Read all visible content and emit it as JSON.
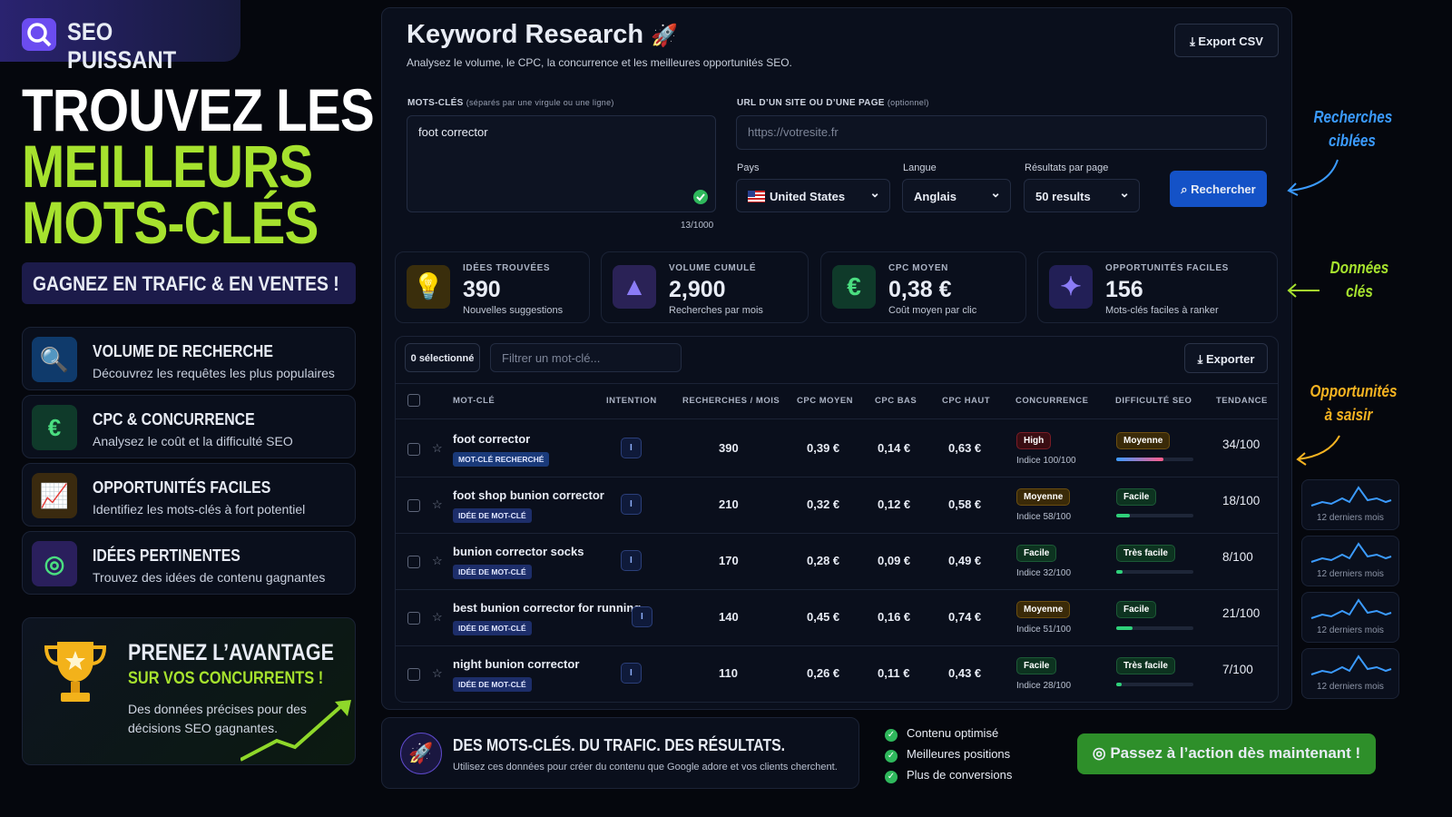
{
  "brand": "SEO PUISSANT",
  "hero": {
    "lines": [
      "TROUVEZ LES",
      "MEILLEURS",
      "MOTS-CLÉS"
    ],
    "badge": "GAGNEZ EN TRAFIC & EN VENTES !"
  },
  "features": [
    {
      "title": "VOLUME DE RECHERCHE",
      "desc": "Découvrez les requêtes les plus populaires"
    },
    {
      "title": "CPC & CONCURRENCE",
      "desc": "Analysez le coût et la difficulté SEO"
    },
    {
      "title": "OPPORTUNITÉS FACILES",
      "desc": "Identifiez les mots-clés à fort potentiel"
    },
    {
      "title": "IDÉES PERTINENTES",
      "desc": "Trouvez des idées de contenu gagnantes"
    }
  ],
  "promo": {
    "title": "PRENEZ L’AVANTAGE",
    "subtitle": "SUR VOS CONCURRENTS !",
    "text": "Des données précises pour des décisions SEO gagnantes."
  },
  "app": {
    "title": "Keyword Research",
    "subtitle": "Analysez le volume, le CPC, la concurrence et les meilleures opportunités SEO.",
    "export": "Export CSV"
  },
  "form": {
    "keywords_label": "MOTS-CLÉS",
    "keywords_hint": "(séparés par une virgule ou une ligne)",
    "keywords_value": "foot corrector",
    "counter": "13/1000",
    "url_label": "URL D’UN SITE OU D’UNE PAGE",
    "url_hint": "(optionnel)",
    "url_placeholder": "https://votresite.fr",
    "country_label": "Pays",
    "country_value": "United States",
    "language_label": "Langue",
    "language_value": "Anglais",
    "results_label": "Résultats par page",
    "results_value": "50 results",
    "search": "Rechercher"
  },
  "stats": [
    {
      "label": "IDÉES TROUVÉES",
      "value": "390",
      "sub": "Nouvelles suggestions"
    },
    {
      "label": "VOLUME CUMULÉ",
      "value": "2,900",
      "sub": "Recherches par mois"
    },
    {
      "label": "CPC MOYEN",
      "value": "0,38 €",
      "sub": "Coût moyen par clic"
    },
    {
      "label": "OPPORTUNITÉS FACILES",
      "value": "156",
      "sub": "Mots-clés faciles à ranker"
    }
  ],
  "toolbar": {
    "selected": "0 sélectionné",
    "filter_placeholder": "Filtrer un mot-clé...",
    "export": "Exporter"
  },
  "table": {
    "columns": [
      "MOT-CLÉ",
      "INTENTION",
      "RECHERCHES / MOIS",
      "CPC MOYEN",
      "CPC BAS",
      "CPC HAUT",
      "CONCURRENCE",
      "DIFFICULTÉ SEO",
      "TENDANCE"
    ],
    "rows": [
      {
        "keyword": "foot corrector",
        "tag": "MOT-CLÉ RECHERCHÉ",
        "intent": "I",
        "volume": "390",
        "cpc": "0,39 €",
        "low": "0,14 €",
        "high": "0,63 €",
        "competition": "High",
        "index": "Indice 100/100",
        "difficulty": "Moyenne",
        "score": "34/100"
      },
      {
        "keyword": "foot shop bunion corrector",
        "tag": "IDÉE DE MOT-CLÉ",
        "intent": "I",
        "volume": "210",
        "cpc": "0,32 €",
        "low": "0,12 €",
        "high": "0,58 €",
        "competition": "Moyenne",
        "index": "Indice 58/100",
        "difficulty": "Facile",
        "score": "18/100",
        "trend": "12 derniers mois"
      },
      {
        "keyword": "bunion corrector socks",
        "tag": "IDÉE DE MOT-CLÉ",
        "intent": "I",
        "volume": "170",
        "cpc": "0,28 €",
        "low": "0,09 €",
        "high": "0,49 €",
        "competition": "Facile",
        "index": "Indice 32/100",
        "difficulty": "Très facile",
        "score": "8/100",
        "trend": "12 derniers mois"
      },
      {
        "keyword": "best bunion corrector for running",
        "tag": "IDÉE DE MOT-CLÉ",
        "intent": "I",
        "volume": "140",
        "cpc": "0,45 €",
        "low": "0,16 €",
        "high": "0,74 €",
        "competition": "Moyenne",
        "index": "Indice 51/100",
        "difficulty": "Facile",
        "score": "21/100",
        "trend": "12 derniers mois"
      },
      {
        "keyword": "night bunion corrector",
        "tag": "IDÉE DE MOT-CLÉ",
        "intent": "I",
        "volume": "110",
        "cpc": "0,26 €",
        "low": "0,11 €",
        "high": "0,43 €",
        "competition": "Facile",
        "index": "Indice 28/100",
        "difficulty": "Très facile",
        "score": "7/100",
        "trend": "12 derniers mois"
      }
    ]
  },
  "annotations": [
    [
      "Recherches",
      "ciblées"
    ],
    [
      "Données",
      "clés"
    ],
    [
      "Opportunités",
      "à saisir"
    ]
  ],
  "footer": {
    "title": "DES MOTS-CLÉS. DU TRAFIC. DES RÉSULTATS.",
    "text": "Utilisez ces données pour créer du contenu que Google adore et vos clients cherchent.",
    "checks": [
      "Contenu optimisé",
      "Meilleures positions",
      "Plus de conversions"
    ],
    "cta": "Passez à l’action dès maintenant !"
  }
}
